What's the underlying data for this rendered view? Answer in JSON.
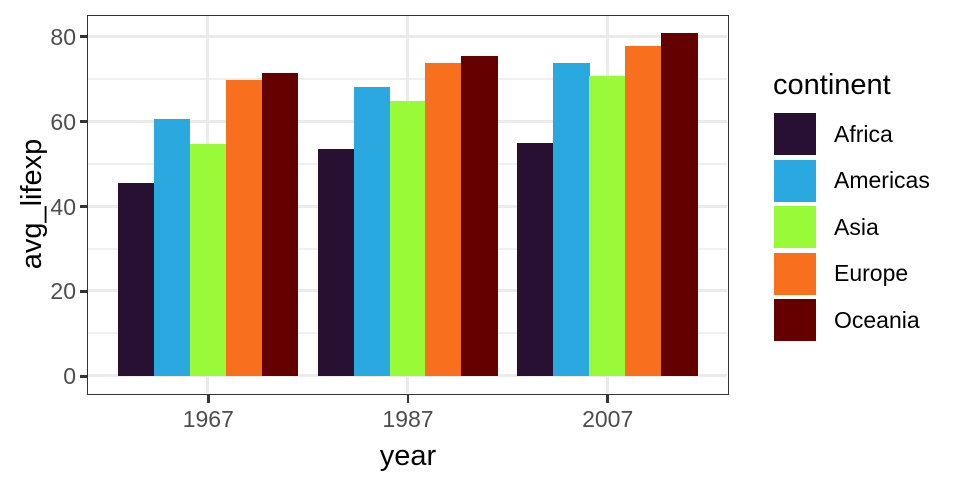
{
  "chart_data": {
    "type": "bar",
    "title": "",
    "xlabel": "year",
    "ylabel": "avg_lifexp",
    "legend_title": "continent",
    "legend_position": "right",
    "categories": [
      "1967",
      "1987",
      "2007"
    ],
    "series": [
      {
        "name": "Africa",
        "color": "#271031",
        "values": [
          45.33,
          53.34,
          54.81
        ]
      },
      {
        "name": "Americas",
        "color": "#2AA9E0",
        "values": [
          60.41,
          68.09,
          73.61
        ]
      },
      {
        "name": "Asia",
        "color": "#99FA37",
        "values": [
          54.66,
          64.85,
          70.73
        ]
      },
      {
        "name": "Europe",
        "color": "#F8701E",
        "values": [
          69.74,
          73.64,
          77.65
        ]
      },
      {
        "name": "Oceania",
        "color": "#650001",
        "values": [
          71.31,
          75.32,
          80.72
        ]
      }
    ],
    "ylim": [
      -4.03,
      84.76
    ],
    "yticks": [
      0,
      20,
      40,
      60,
      80
    ],
    "yticks_minor": [
      10,
      30,
      50,
      70
    ],
    "grid": true,
    "bar_group_fraction": 0.9,
    "x_expand": 0.6
  },
  "theme": {
    "background": "#FFFFFF",
    "panel_background": "#FFFFFF",
    "panel_border": "#333333",
    "grid_major": "#EBEBEB",
    "grid_minor": "#F0F0F0",
    "tick_mark": "#333333",
    "tick_label": "#4D4D4D",
    "text": "#000000"
  }
}
